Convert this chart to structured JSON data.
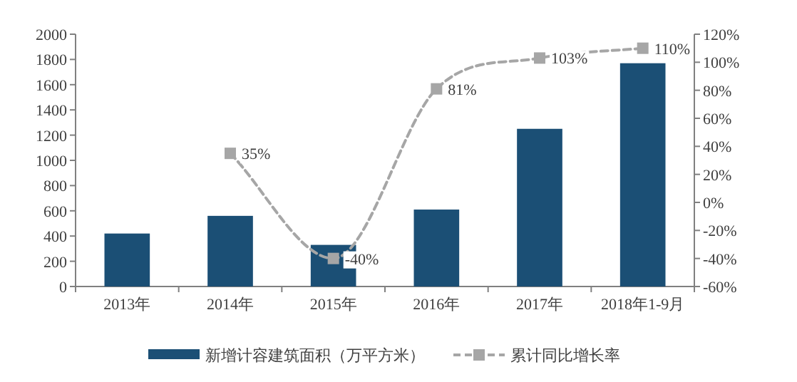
{
  "chart_data": {
    "type": "bar",
    "categories": [
      "2013年",
      "2014年",
      "2015年",
      "2016年",
      "2017年",
      "2018年1-9月"
    ],
    "series": [
      {
        "name": "新增计容建筑面积（万平方米）",
        "color": "#1b4f75",
        "values": [
          420,
          560,
          330,
          610,
          1250,
          1770
        ]
      },
      {
        "name": "累计同比增长率",
        "type": "line",
        "axis": "y2",
        "color": "#a6a6a6",
        "line_style": "dashed",
        "marker": "square",
        "values": [
          null,
          35,
          -40,
          81,
          103,
          110
        ],
        "value_labels": [
          null,
          "35%",
          "-40%",
          "81%",
          "103%",
          "110%"
        ]
      }
    ],
    "ylim": [
      0,
      2000
    ],
    "yticks": [
      0,
      200,
      400,
      600,
      800,
      1000,
      1200,
      1400,
      1600,
      1800,
      2000
    ],
    "y2lim": [
      -60,
      120
    ],
    "y2ticks": [
      {
        "value": -60,
        "label": "-60%"
      },
      {
        "value": -40,
        "label": "-40%"
      },
      {
        "value": -20,
        "label": "-20%"
      },
      {
        "value": 0,
        "label": "0%"
      },
      {
        "value": 20,
        "label": "20%"
      },
      {
        "value": 40,
        "label": "40%"
      },
      {
        "value": 60,
        "label": "60%"
      },
      {
        "value": 80,
        "label": "80%"
      },
      {
        "value": 100,
        "label": "100%"
      },
      {
        "value": 120,
        "label": "120%"
      }
    ],
    "grid": false,
    "legend": "bottom"
  }
}
